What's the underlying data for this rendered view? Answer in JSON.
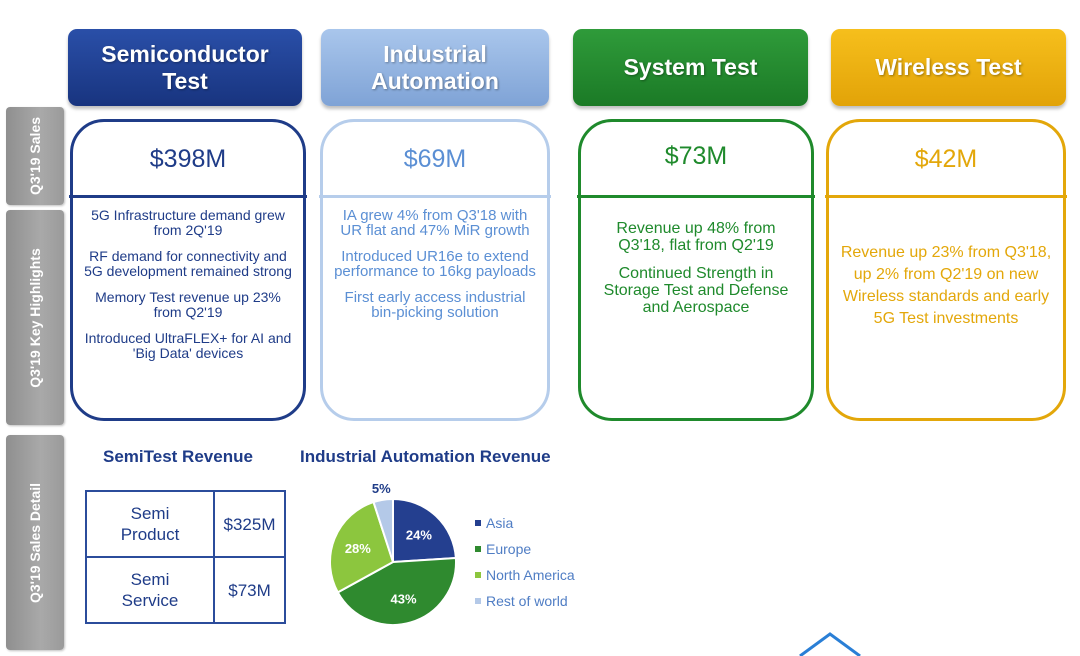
{
  "side_tabs": {
    "sales": "Q3'19 Sales",
    "highlights": "Q3'19  Key Highlights",
    "detail": "Q3'19 Sales Detail"
  },
  "columns": [
    {
      "title": "Semiconductor Test",
      "sales": "$398M",
      "highlights": [
        "5G Infrastructure demand grew from 2Q'19",
        "RF demand for connectivity and 5G development remained strong",
        "Memory Test revenue up 23% from Q2'19",
        "Introduced UltraFLEX+ for AI and 'Big Data' devices"
      ]
    },
    {
      "title": "Industrial Automation",
      "sales": "$69M",
      "highlights": [
        "IA grew 4% from Q3'18 with UR flat and 47% MiR growth",
        "Introduced UR16e to extend performance to 16kg payloads",
        "First early access industrial bin-picking solution"
      ]
    },
    {
      "title": "System Test",
      "sales": "$73M",
      "highlights": [
        "Revenue up 48% from Q3'18, flat from Q2'19",
        "Continued Strength in Storage Test and Defense and Aerospace"
      ]
    },
    {
      "title": "Wireless Test",
      "sales": "$42M",
      "highlights": [
        "Revenue up 23% from Q3'18, up 2% from Q2'19 on new Wireless standards and early 5G Test investments"
      ]
    }
  ],
  "semitest": {
    "title": "SemiTest Revenue",
    "rows": [
      {
        "label": "Semi Product",
        "value": "$325M"
      },
      {
        "label": "Semi Service",
        "value": "$73M"
      }
    ]
  },
  "chart_data": {
    "type": "pie",
    "title": "Industrial Automation Revenue",
    "labels": [
      "Asia",
      "Europe",
      "North America",
      "Rest of world"
    ],
    "values": [
      24,
      43,
      28,
      5
    ],
    "data_labels": [
      "24%",
      "43%",
      "28%",
      "5%"
    ],
    "colors": [
      "#243f8f",
      "#2f8a2f",
      "#8cc63e",
      "#b4c9e8"
    ],
    "legend_placement": "right"
  },
  "colors": {
    "semi": "#1f3c88",
    "ia": "#8fb2e0",
    "ia_text": "#5b8fd4",
    "system": "#1f8a2c",
    "wireless": "#e3a70a"
  }
}
